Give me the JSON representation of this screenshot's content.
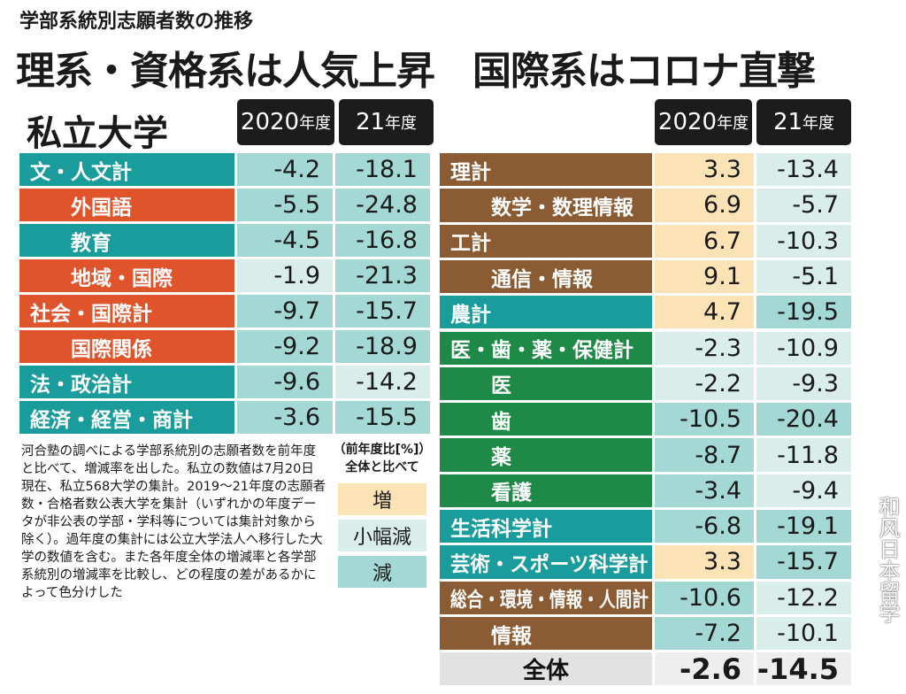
{
  "subtitle": "学部系統別志願者数の推移",
  "title": "理系・資格系は人気上昇　国際系はコロナ直撃",
  "section": "私立大学",
  "headers": {
    "y2020": "2020",
    "y21": "21",
    "suffix": "年度"
  },
  "colors": {
    "teal": "#1b9c9c",
    "orange": "#e0542c",
    "brown": "#8b5b33",
    "green": "#1f8a48",
    "gray": "#e2e2e2",
    "up": "#fbe3b6",
    "small": "#d9eeea",
    "down": "#a4d8d4"
  },
  "left_rows": [
    {
      "label": "文・人文計",
      "group": "teal",
      "indent": false,
      "v2020": "-4.2",
      "l2020": "down",
      "v21": "-18.1",
      "l21": "down"
    },
    {
      "label": "外国語",
      "group": "orange",
      "indent": true,
      "v2020": "-5.5",
      "l2020": "down",
      "v21": "-24.8",
      "l21": "down"
    },
    {
      "label": "教育",
      "group": "teal",
      "indent": true,
      "v2020": "-4.5",
      "l2020": "down",
      "v21": "-16.8",
      "l21": "down"
    },
    {
      "label": "地域・国際",
      "group": "orange",
      "indent": true,
      "v2020": "-1.9",
      "l2020": "small",
      "v21": "-21.3",
      "l21": "down"
    },
    {
      "label": "社会・国際計",
      "group": "orange",
      "indent": false,
      "v2020": "-9.7",
      "l2020": "down",
      "v21": "-15.7",
      "l21": "down"
    },
    {
      "label": "国際関係",
      "group": "orange",
      "indent": true,
      "v2020": "-9.2",
      "l2020": "down",
      "v21": "-18.9",
      "l21": "down"
    },
    {
      "label": "法・政治計",
      "group": "teal",
      "indent": false,
      "v2020": "-9.6",
      "l2020": "down",
      "v21": "-14.2",
      "l21": "small"
    },
    {
      "label": "経済・経営・商計",
      "group": "teal",
      "indent": false,
      "v2020": "-3.6",
      "l2020": "down",
      "v21": "-15.5",
      "l21": "down"
    }
  ],
  "right_rows": [
    {
      "label": "理計",
      "group": "brown",
      "indent": false,
      "v2020": "3.3",
      "l2020": "up",
      "v21": "-13.4",
      "l21": "small"
    },
    {
      "label": "数学・数理情報",
      "group": "brown",
      "indent": true,
      "v2020": "6.9",
      "l2020": "up",
      "v21": "-5.7",
      "l21": "small"
    },
    {
      "label": "工計",
      "group": "brown",
      "indent": false,
      "v2020": "6.7",
      "l2020": "up",
      "v21": "-10.3",
      "l21": "small"
    },
    {
      "label": "通信・情報",
      "group": "brown",
      "indent": true,
      "v2020": "9.1",
      "l2020": "up",
      "v21": "-5.1",
      "l21": "small"
    },
    {
      "label": "農計",
      "group": "teal",
      "indent": false,
      "v2020": "4.7",
      "l2020": "up",
      "v21": "-19.5",
      "l21": "down"
    },
    {
      "label": "医・歯・薬・保健計",
      "group": "green",
      "indent": false,
      "v2020": "-2.3",
      "l2020": "small",
      "v21": "-10.9",
      "l21": "small"
    },
    {
      "label": "医",
      "group": "green",
      "indent": true,
      "v2020": "-2.2",
      "l2020": "small",
      "v21": "-9.3",
      "l21": "small"
    },
    {
      "label": "歯",
      "group": "green",
      "indent": true,
      "v2020": "-10.5",
      "l2020": "down",
      "v21": "-20.4",
      "l21": "down"
    },
    {
      "label": "薬",
      "group": "green",
      "indent": true,
      "v2020": "-8.7",
      "l2020": "down",
      "v21": "-11.8",
      "l21": "small"
    },
    {
      "label": "看護",
      "group": "green",
      "indent": true,
      "v2020": "-3.4",
      "l2020": "down",
      "v21": "-9.4",
      "l21": "small"
    },
    {
      "label": "生活科学計",
      "group": "teal",
      "indent": false,
      "v2020": "-6.8",
      "l2020": "down",
      "v21": "-19.1",
      "l21": "down"
    },
    {
      "label": "芸術・スポーツ科学計",
      "group": "teal",
      "indent": false,
      "v2020": "3.3",
      "l2020": "up",
      "v21": "-15.7",
      "l21": "down"
    },
    {
      "label": "総合・環境・情報・人間計",
      "group": "brown",
      "indent": false,
      "v2020": "-10.6",
      "l2020": "down",
      "v21": "-12.2",
      "l21": "small"
    },
    {
      "label": "情報",
      "group": "brown",
      "indent": true,
      "v2020": "-7.2",
      "l2020": "down",
      "v21": "-10.1",
      "l21": "small"
    },
    {
      "label": "全体",
      "group": "gray",
      "indent": false,
      "total": true,
      "v2020": "-2.6",
      "l2020": "total",
      "v21": "-14.5",
      "l21": "total"
    }
  ],
  "note": "河合塾の調べによる学部系統別の志願者数を前年度と比べて、増減率を出した。私立の数値は7月20日現在、私立568大学の集計。2019～21年度の志願者数・合格者数公表大学を集計（いずれかの年度データが非公表の学部・学科等については集計対象から除く）。過年度の集計には公立大学法人へ移行した大学の数値を含む。また各年度全体の増減率と各学部系統別の増減率を比較し、どの程度の差があるかによって色分けした",
  "legend": {
    "title1": "（前年度比[%]）",
    "title2": "全体と比べて",
    "up": "増",
    "small": "小幅減",
    "down": "減"
  },
  "watermark": "和风日本留学"
}
